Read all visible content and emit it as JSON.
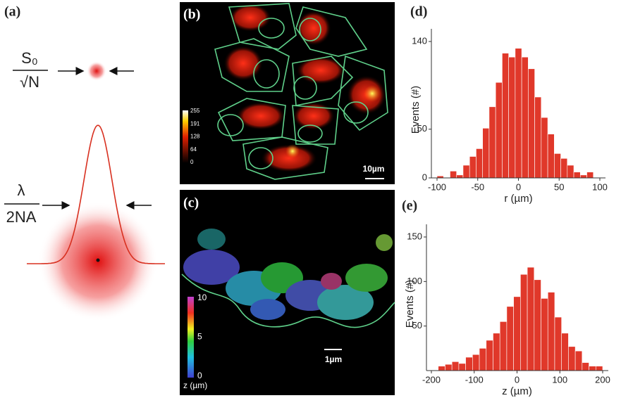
{
  "chart_data": [
    {
      "type": "histogram",
      "color": "#e0382a",
      "bins": [
        -100,
        -92,
        -84,
        -76,
        -68,
        -60,
        -52,
        -44,
        -36,
        -28,
        -20,
        -12,
        -4,
        4,
        12,
        20,
        28,
        36,
        44,
        52,
        60,
        68,
        76,
        84,
        92,
        100
      ],
      "values": [
        2,
        0,
        7,
        3,
        13,
        22,
        30,
        51,
        73,
        98,
        128,
        124,
        133,
        124,
        112,
        83,
        62,
        45,
        25,
        20,
        13,
        6,
        3,
        6,
        0
      ],
      "xlim": [
        -100,
        100
      ],
      "xticks": [
        -100,
        -50,
        0,
        50,
        100
      ],
      "ylim": [
        0,
        140
      ],
      "yticks": [
        0,
        50,
        140
      ],
      "xlabel": "r (µm)",
      "ylabel": "Events (#)"
    },
    {
      "type": "histogram",
      "color": "#e0382a",
      "bins": [
        -200,
        -184,
        -168,
        -152,
        -136,
        -120,
        -104,
        -88,
        -72,
        -56,
        -40,
        -24,
        -8,
        8,
        24,
        40,
        56,
        72,
        88,
        104,
        120,
        136,
        152,
        168,
        184,
        200
      ],
      "values": [
        0,
        5,
        7,
        10,
        8,
        15,
        18,
        25,
        34,
        42,
        55,
        72,
        83,
        108,
        116,
        102,
        81,
        88,
        60,
        42,
        27,
        22,
        9,
        5,
        5
      ],
      "xlim": [
        -200,
        200
      ],
      "xticks": [
        -200,
        -100,
        0,
        100,
        200
      ],
      "ylim": [
        0,
        150
      ],
      "yticks": [
        50,
        100,
        150
      ],
      "xlabel": "z (µm)",
      "ylabel": "Events (#)"
    }
  ],
  "panels": {
    "a": {
      "label": "(a)",
      "top_numerator": "S₀",
      "top_denominator": "√N",
      "bottom_numerator": "λ",
      "bottom_denominator": "2NA"
    },
    "b": {
      "label": "(b)",
      "colorbar_ticks": [
        255,
        191,
        128,
        64,
        0
      ],
      "scale_bar": "10µm"
    },
    "c": {
      "label": "(c)",
      "colorbar_ticks": [
        10,
        5,
        0
      ],
      "colorbar_label": "z (µm)",
      "scale_bar": "1µm"
    },
    "d": {
      "label": "(d)"
    },
    "e": {
      "label": "(e)"
    }
  }
}
